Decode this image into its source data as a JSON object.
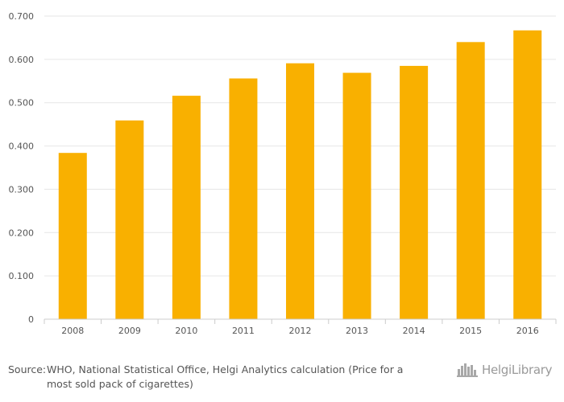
{
  "chart_data": {
    "type": "bar",
    "categories": [
      "2008",
      "2009",
      "2010",
      "2011",
      "2012",
      "2013",
      "2014",
      "2015",
      "2016"
    ],
    "values": [
      0.384,
      0.459,
      0.516,
      0.556,
      0.591,
      0.569,
      0.585,
      0.64,
      0.667
    ],
    "ylim": [
      0,
      0.7
    ],
    "yticks": [
      "0",
      "0.100",
      "0.200",
      "0.300",
      "0.400",
      "0.500",
      "0.600",
      "0.700"
    ],
    "ytick_values": [
      0,
      0.1,
      0.2,
      0.3,
      0.4,
      0.5,
      0.6,
      0.7
    ],
    "grid": true,
    "bar_color": "#f9b000",
    "grid_color": "#e6e6e6"
  },
  "footer": {
    "source_label": "Source:",
    "source_line1": "WHO, National Statistical Office, Helgi Analytics calculation (Price for a",
    "source_line2": "most sold pack of cigarettes)",
    "logo_text": "HelgiLibrary",
    "logo_icon": "city-skyline-icon"
  }
}
